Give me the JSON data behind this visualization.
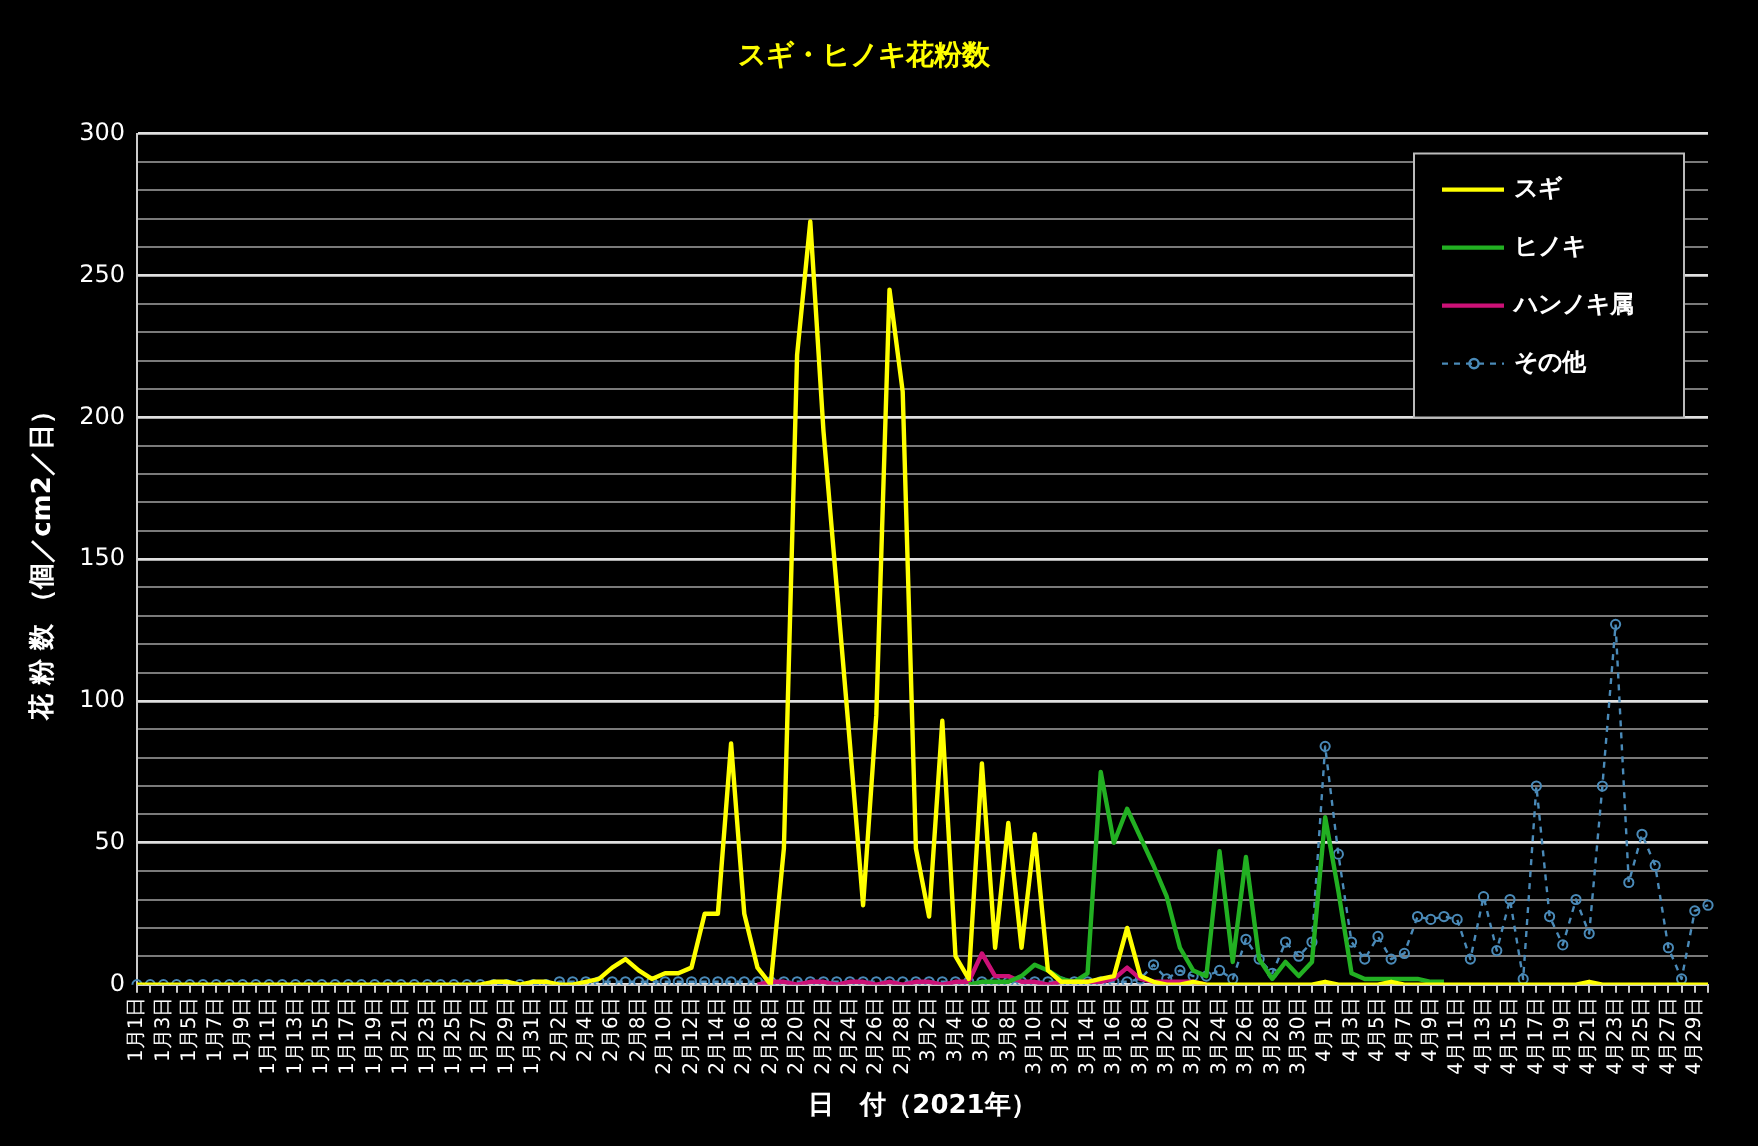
{
  "chart_data": {
    "type": "line",
    "title": "スギ・ヒノキ花粉数",
    "xlabel": "日　付（2021年）",
    "ylabel": "花 粉 数 （個／cm2／日）",
    "categories": [
      "1月1日",
      null,
      "1月3日",
      null,
      "1月5日",
      null,
      "1月7日",
      null,
      "1月9日",
      null,
      "1月11日",
      null,
      "1月13日",
      null,
      "1月15日",
      null,
      "1月17日",
      null,
      "1月19日",
      null,
      "1月21日",
      null,
      "1月23日",
      null,
      "1月25日",
      null,
      "1月27日",
      null,
      "1月29日",
      null,
      "1月31日",
      null,
      "2月2日",
      null,
      "2月4日",
      null,
      "2月6日",
      null,
      "2月8日",
      null,
      "2月10日",
      null,
      "2月12日",
      null,
      "2月14日",
      null,
      "2月16日",
      null,
      "2月18日",
      null,
      "2月20日",
      null,
      "2月22日",
      null,
      "2月24日",
      null,
      "2月26日",
      null,
      "2月28日",
      null,
      "3月2日",
      null,
      "3月4日",
      null,
      "3月6日",
      null,
      "3月8日",
      null,
      "3月10日",
      null,
      "3月12日",
      null,
      "3月14日",
      null,
      "3月16日",
      null,
      "3月18日",
      null,
      "3月20日",
      null,
      "3月22日",
      null,
      "3月24日",
      null,
      "3月26日",
      null,
      "3月28日",
      null,
      "3月30日",
      null,
      "4月1日",
      null,
      "4月3日",
      null,
      "4月5日",
      null,
      "4月7日",
      null,
      "4月9日",
      null,
      "4月11日",
      null,
      "4月13日",
      null,
      "4月15日",
      null,
      "4月17日",
      null,
      "4月19日",
      null,
      "4月21日",
      null,
      "4月23日",
      null,
      "4月25日",
      null,
      "4月27日",
      null,
      "4月29日",
      null
    ],
    "series": [
      {
        "name": "スギ",
        "color": "#ffff00",
        "marker": "none",
        "line_style": "solid",
        "values": [
          0,
          0,
          0,
          0,
          0,
          0,
          0,
          0,
          0,
          0,
          0,
          0,
          0,
          0,
          0,
          0,
          0,
          0,
          0,
          0,
          0,
          0,
          0,
          0,
          0,
          0,
          0,
          1,
          1,
          0,
          1,
          1,
          0,
          0,
          1,
          2,
          6,
          9,
          5,
          2,
          4,
          4,
          6,
          25,
          25,
          85,
          25,
          6,
          0,
          48,
          222,
          269,
          195,
          140,
          85,
          28,
          95,
          245,
          209,
          48,
          24,
          93,
          10,
          2,
          78,
          13,
          57,
          13,
          53,
          5,
          1,
          1,
          1,
          2,
          3,
          20,
          3,
          1,
          0,
          0,
          1,
          0,
          0,
          0,
          0,
          0,
          0,
          0,
          0,
          0,
          1,
          0,
          0,
          0,
          0,
          1,
          0,
          0,
          0,
          0,
          0,
          0,
          0,
          0,
          0,
          0,
          0,
          0,
          0,
          0,
          1,
          0,
          0,
          0,
          0,
          0,
          0,
          0,
          0,
          0
        ]
      },
      {
        "name": "ヒノキ",
        "color": "#22b022",
        "marker": "none",
        "line_style": "solid",
        "values": [
          null,
          null,
          null,
          null,
          null,
          null,
          null,
          null,
          null,
          null,
          null,
          null,
          null,
          null,
          null,
          null,
          null,
          null,
          null,
          null,
          null,
          null,
          null,
          null,
          null,
          null,
          null,
          null,
          null,
          null,
          null,
          null,
          null,
          null,
          null,
          null,
          null,
          null,
          null,
          null,
          null,
          null,
          null,
          null,
          null,
          null,
          null,
          null,
          null,
          null,
          null,
          null,
          null,
          null,
          null,
          null,
          null,
          null,
          null,
          null,
          null,
          null,
          null,
          0,
          1,
          1,
          1,
          3,
          7,
          5,
          2,
          1,
          4,
          75,
          50,
          62,
          52,
          42,
          31,
          13,
          5,
          3,
          47,
          8,
          45,
          9,
          2,
          8,
          3,
          8,
          59,
          33,
          4,
          2,
          2,
          2,
          2,
          2,
          1,
          1,
          null,
          null,
          null,
          null,
          null,
          null,
          null,
          null,
          null,
          null,
          null,
          null,
          null,
          null,
          null,
          null,
          null,
          null,
          null,
          null
        ]
      },
      {
        "name": "ハンノキ属",
        "color": "#cc1177",
        "marker": "none",
        "line_style": "solid",
        "values": [
          null,
          null,
          null,
          null,
          null,
          null,
          null,
          null,
          null,
          null,
          null,
          null,
          null,
          null,
          null,
          null,
          null,
          null,
          null,
          null,
          null,
          null,
          null,
          null,
          null,
          null,
          null,
          null,
          null,
          null,
          null,
          null,
          null,
          null,
          null,
          null,
          null,
          null,
          null,
          null,
          null,
          null,
          null,
          null,
          null,
          null,
          null,
          0,
          1,
          1,
          0,
          1,
          1,
          0,
          1,
          1,
          0,
          1,
          0,
          1,
          1,
          0,
          1,
          1,
          11,
          3,
          3,
          1,
          1,
          0,
          1,
          1,
          1,
          1,
          2,
          6,
          2,
          1,
          1,
          1,
          1,
          0,
          null,
          null,
          null,
          null,
          null,
          null,
          null,
          null,
          null,
          null,
          null,
          null,
          null,
          null,
          null,
          null,
          null,
          null,
          null,
          null,
          null,
          null,
          null,
          null,
          null,
          null,
          null,
          null,
          null,
          null,
          null,
          null,
          null,
          null,
          null,
          null,
          null,
          null
        ]
      },
      {
        "name": "その他",
        "color": "#4a8ab8",
        "marker": "circle",
        "line_style": "dashed",
        "values": [
          0,
          0,
          0,
          0,
          0,
          0,
          0,
          0,
          0,
          0,
          0,
          0,
          0,
          0,
          0,
          0,
          0,
          0,
          0,
          0,
          0,
          0,
          0,
          0,
          0,
          0,
          0,
          0,
          0,
          0,
          0,
          0,
          1,
          1,
          1,
          1,
          1,
          1,
          1,
          1,
          1,
          1,
          1,
          1,
          1,
          1,
          1,
          1,
          1,
          1,
          1,
          1,
          1,
          1,
          1,
          1,
          1,
          1,
          1,
          1,
          1,
          1,
          1,
          1,
          1,
          1,
          1,
          1,
          1,
          1,
          1,
          1,
          1,
          1,
          1,
          1,
          2,
          7,
          2,
          5,
          3,
          3,
          5,
          2,
          16,
          9,
          4,
          15,
          10,
          15,
          84,
          46,
          15,
          9,
          17,
          9,
          11,
          24,
          23,
          24,
          23,
          9,
          31,
          12,
          30,
          2,
          70,
          24,
          14,
          30,
          18,
          70,
          127,
          36,
          53,
          42,
          13,
          2,
          26,
          28
        ]
      }
    ],
    "ylim": [
      0,
      300
    ],
    "yticks": [
      0,
      {
        "value": 10,
        "label": null
      },
      {
        "value": 20,
        "label": null
      },
      {
        "value": 30,
        "label": null
      },
      {
        "value": 40,
        "label": null
      },
      50,
      {
        "value": 60,
        "label": null
      },
      {
        "value": 70,
        "label": null
      },
      {
        "value": 80,
        "label": null
      },
      {
        "value": 90,
        "label": null
      },
      100,
      {
        "value": 110,
        "label": null
      },
      {
        "value": 120,
        "label": null
      },
      {
        "value": 130,
        "label": null
      },
      {
        "value": 140,
        "label": null
      },
      150,
      {
        "value": 160,
        "label": null
      },
      {
        "value": 170,
        "label": null
      },
      {
        "value": 180,
        "label": null
      },
      {
        "value": 190,
        "label": null
      },
      200,
      {
        "value": 210,
        "label": null
      },
      {
        "value": 220,
        "label": null
      },
      {
        "value": 230,
        "label": null
      },
      {
        "value": 240,
        "label": null
      },
      250,
      {
        "value": 260,
        "label": null
      },
      {
        "value": 270,
        "label": null
      },
      {
        "value": 280,
        "label": null
      },
      {
        "value": 290,
        "label": null
      },
      300
    ],
    "grid": "y",
    "legend": "top right"
  }
}
